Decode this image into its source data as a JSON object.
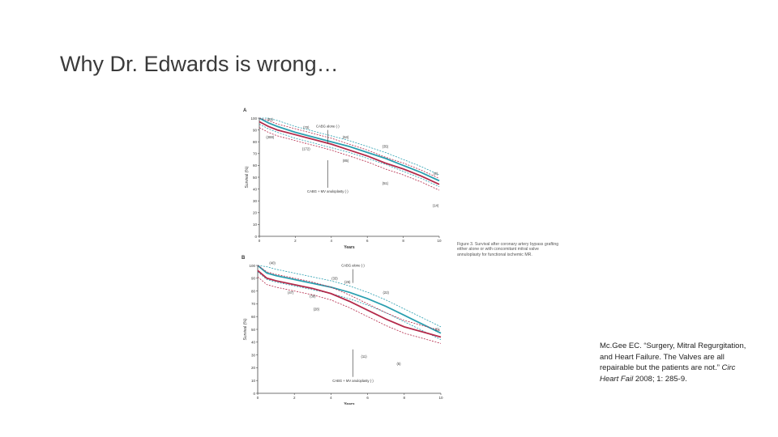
{
  "slide": {
    "title": "Why Dr. Edwards is wrong…"
  },
  "figure_caption": "Figure 3. Survival after coronary artery bypass grafting either alone or with concomitant mitral valve annuloplasty for functional ischemic MR.",
  "citation": {
    "text": "Mc.Gee EC. “Surgery, Mitral Regurgitation, and Heart Failure. The Valves are all repairable but the patients are not.”",
    "journal": "Circ Heart Fail",
    "ref": "2008; 1: 285-9."
  },
  "colors": {
    "cabg_alone": "#2a9fb0",
    "cabg_mv": "#b42a4a",
    "axis": "#444444"
  },
  "chart_data": [
    {
      "panel": "A",
      "type": "line",
      "xlabel": "Years",
      "ylabel": "Survival (%)",
      "xlim": [
        0,
        10
      ],
      "ylim": [
        0,
        100
      ],
      "xticks": [
        0,
        2,
        4,
        6,
        8,
        10
      ],
      "yticks": [
        0,
        10,
        20,
        30,
        40,
        50,
        60,
        70,
        80,
        90,
        100
      ],
      "annotations": [
        {
          "text": "CABG alone (·)",
          "x": 3.8,
          "y": 92
        },
        {
          "text": "CABG + MV anuloplasty (·)",
          "x": 3.8,
          "y": 37
        }
      ],
      "at_risk_labels": [
        {
          "text": "(91)",
          "x": 0.6,
          "y": 98
        },
        {
          "text": "(70)",
          "x": 2.6,
          "y": 91
        },
        {
          "text": "(64)",
          "x": 4.8,
          "y": 83
        },
        {
          "text": "(35)",
          "x": 7.0,
          "y": 75
        },
        {
          "text": "(8)",
          "x": 9.8,
          "y": 52
        },
        {
          "text": "(288)",
          "x": 0.6,
          "y": 83
        },
        {
          "text": "(172)",
          "x": 2.6,
          "y": 73
        },
        {
          "text": "(85)",
          "x": 4.8,
          "y": 63
        },
        {
          "text": "(51)",
          "x": 7.0,
          "y": 44
        },
        {
          "text": "(14)",
          "x": 9.8,
          "y": 25
        }
      ],
      "series": [
        {
          "key": "cabg_alone",
          "x": [
            0,
            0.5,
            1,
            2,
            3,
            4,
            5,
            6,
            7,
            8,
            9,
            10
          ],
          "y": [
            100,
            96,
            93,
            88,
            84,
            80,
            76,
            71,
            66,
            60,
            54,
            47
          ]
        },
        {
          "key": "cabg_mv",
          "x": [
            0,
            0.5,
            1,
            2,
            3,
            4,
            5,
            6,
            7,
            8,
            9,
            10
          ],
          "y": [
            97,
            93,
            90,
            86,
            82,
            78,
            73,
            68,
            62,
            57,
            51,
            44
          ]
        }
      ]
    },
    {
      "panel": "B",
      "type": "line",
      "xlabel": "Years",
      "ylabel": "Survival (%)",
      "xlim": [
        0,
        10
      ],
      "ylim": [
        0,
        100
      ],
      "xticks": [
        0,
        2,
        4,
        6,
        8,
        10
      ],
      "yticks": [
        0,
        10,
        20,
        30,
        40,
        50,
        60,
        70,
        80,
        90,
        100
      ],
      "annotations": [
        {
          "text": "CABG alone (·)",
          "x": 5.2,
          "y": 99
        },
        {
          "text": "CABG + MV anuloplasty (·)",
          "x": 5.2,
          "y": 9
        }
      ],
      "at_risk_labels": [
        {
          "text": "(40)",
          "x": 0.8,
          "y": 101
        },
        {
          "text": "(33)",
          "x": 4.2,
          "y": 89
        },
        {
          "text": "(25)",
          "x": 4.9,
          "y": 86
        },
        {
          "text": "(22)",
          "x": 7.0,
          "y": 78
        },
        {
          "text": "(47)",
          "x": 1.8,
          "y": 78
        },
        {
          "text": "(39)",
          "x": 3.0,
          "y": 75
        },
        {
          "text": "(28)",
          "x": 3.2,
          "y": 65
        },
        {
          "text": "(11)",
          "x": 5.8,
          "y": 28
        },
        {
          "text": "(5)",
          "x": 7.7,
          "y": 22
        },
        {
          "text": "(5)",
          "x": 9.8,
          "y": 49
        }
      ],
      "series": [
        {
          "key": "cabg_alone",
          "x": [
            0,
            0.5,
            1,
            2,
            3,
            4,
            5,
            6,
            7,
            8,
            9,
            10
          ],
          "y": [
            100,
            94,
            92,
            89,
            86,
            83,
            79,
            74,
            68,
            61,
            54,
            47
          ]
        },
        {
          "key": "cabg_mv",
          "x": [
            0,
            0.5,
            1,
            2,
            3,
            4,
            5,
            6,
            7,
            8,
            9,
            10
          ],
          "y": [
            96,
            90,
            88,
            85,
            82,
            78,
            72,
            65,
            58,
            52,
            48,
            44
          ]
        }
      ]
    }
  ]
}
